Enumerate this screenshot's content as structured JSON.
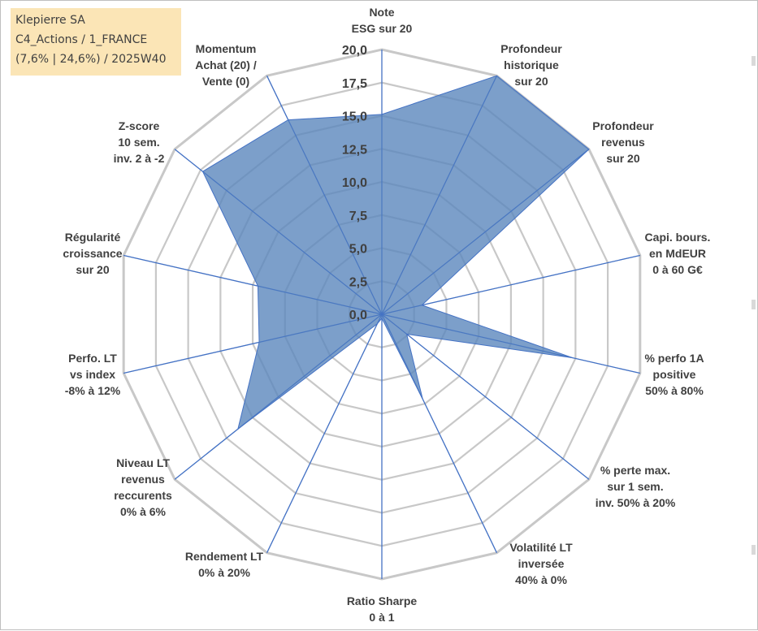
{
  "info": {
    "line1": "Klepierre SA",
    "line2": "C4_Actions / 1_FRANCE",
    "line3": "(7,6% | 24,6%) / 2025W40"
  },
  "colors": {
    "fill": "#5b87bd",
    "fill_opacity": "0.8",
    "series_stroke": "#4472c4",
    "spoke": "#4472c4",
    "grid": "#c8c8c8",
    "text": "#404040"
  },
  "chart_data": {
    "type": "radar",
    "rmin": 0,
    "rmax": 20,
    "ticks": [
      "0,0",
      "2,5",
      "5,0",
      "7,5",
      "10,0",
      "12,5",
      "15,0",
      "17,5",
      "20,0"
    ],
    "tick_values": [
      0,
      2.5,
      5,
      7.5,
      10,
      12.5,
      15,
      17.5,
      20
    ],
    "categories": [
      {
        "lines": [
          "Note",
          "ESG sur 20"
        ]
      },
      {
        "lines": [
          "Profondeur",
          "historique",
          "sur 20"
        ]
      },
      {
        "lines": [
          "Profondeur",
          "revenus",
          "sur 20"
        ]
      },
      {
        "lines": [
          "Capi. bours.",
          "en MdEUR",
          "0 à 60 G€"
        ]
      },
      {
        "lines": [
          "% perfo 1A",
          "positive",
          "50% à 80%"
        ]
      },
      {
        "lines": [
          "% perte max.",
          "sur 1 sem.",
          "inv. 50% à 20%"
        ]
      },
      {
        "lines": [
          "Volatilité LT",
          "inversée",
          "40% à 0%"
        ]
      },
      {
        "lines": [
          "Ratio Sharpe",
          "0 à 1"
        ]
      },
      {
        "lines": [
          "Rendement LT",
          "0% à 20%"
        ]
      },
      {
        "lines": [
          "Niveau LT",
          "revenus",
          "reccurents",
          "0% à 6%"
        ]
      },
      {
        "lines": [
          "Perfo. LT",
          "vs index",
          "-8% à 12%"
        ]
      },
      {
        "lines": [
          "Régularité",
          "croissance",
          "sur 20"
        ]
      },
      {
        "lines": [
          "Z-score",
          "10 sem.",
          "inv. 2 à -2"
        ]
      },
      {
        "lines": [
          "Momentum",
          "Achat (20) /",
          "Vente (0)"
        ]
      }
    ],
    "series": [
      {
        "name": "Klepierre SA",
        "values": [
          15.1,
          20,
          20,
          3.1,
          14.8,
          2.4,
          7.1,
          0.3,
          0.8,
          13.9,
          9.5,
          9.6,
          17.3,
          16.3
        ]
      }
    ]
  }
}
